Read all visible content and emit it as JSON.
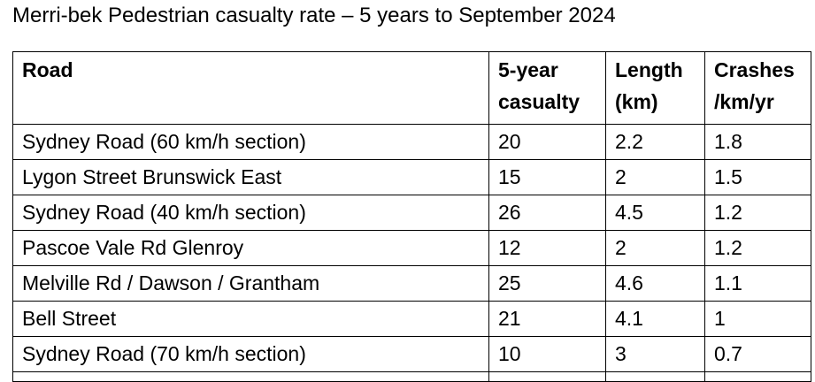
{
  "title": "Merri-bek Pedestrian casualty rate – 5 years to September 2024",
  "table": {
    "headers": [
      {
        "line1": "Road",
        "line2": ""
      },
      {
        "line1": "5-year",
        "line2": "casualty"
      },
      {
        "line1": "Length",
        "line2": "(km)"
      },
      {
        "line1": "Crashes",
        "line2": "/km/yr"
      }
    ],
    "rows": [
      [
        "Sydney Road (60 km/h section)",
        "20",
        "2.2",
        "1.8"
      ],
      [
        "Lygon Street Brunswick East",
        "15",
        "2",
        "1.5"
      ],
      [
        "Sydney Road (40 km/h section)",
        "26",
        "4.5",
        "1.2"
      ],
      [
        "Pascoe Vale Rd Glenroy",
        "12",
        "2",
        "1.2"
      ],
      [
        "Melville Rd / Dawson / Grantham",
        "25",
        "4.6",
        "1.1"
      ],
      [
        "Bell Street",
        "21",
        "4.1",
        "1"
      ],
      [
        "Sydney Road (70 km/h section)",
        "10",
        "3",
        "0.7"
      ]
    ]
  }
}
